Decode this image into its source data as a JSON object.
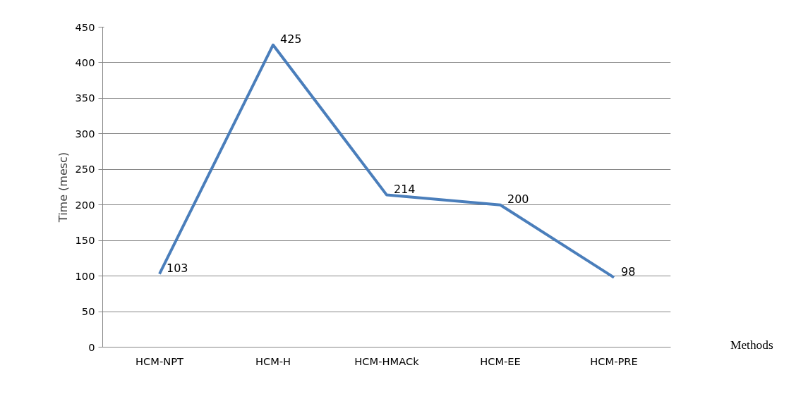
{
  "chart_data": {
    "type": "line",
    "xlabel": "Methods",
    "ylabel": "Time (mesc)",
    "categories": [
      "HCM-NPT",
      "HCM-H",
      "HCM-HMACk",
      "HCM-EE",
      "HCM-PRE"
    ],
    "series": [
      {
        "color": "#4a7ebb",
        "values": [
          103,
          425,
          214,
          200,
          98
        ]
      }
    ],
    "ylim": [
      0,
      450
    ],
    "yticks": [
      0,
      50,
      100,
      150,
      200,
      250,
      300,
      350,
      400,
      450
    ],
    "grid": "y",
    "data_labels": true,
    "line_style": "solid"
  }
}
